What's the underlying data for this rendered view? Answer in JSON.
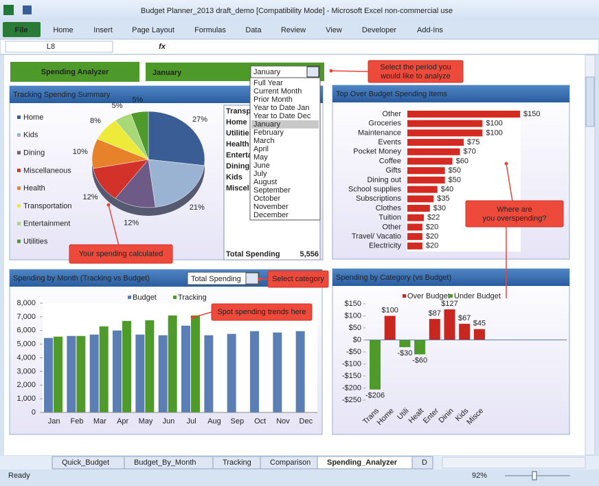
{
  "window": {
    "title": "Budget Planner_2013 draft_demo  [Compatibility Mode]  -  Microsoft Excel non-commercial use",
    "tabs": [
      "File",
      "Home",
      "Insert",
      "Page Layout",
      "Formulas",
      "Data",
      "Review",
      "View",
      "Developer",
      "Add-Ins"
    ],
    "name_box": "L8",
    "fx": "fx"
  },
  "header": {
    "title": "Spending Analyzer",
    "period": "January",
    "dropdown": {
      "selected": "January",
      "options": [
        "Full Year",
        "Current Month",
        "Prior Month",
        "Year to Date Jan",
        "Year to Date Dec",
        "January",
        "February",
        "March",
        "April",
        "May",
        "June",
        "July",
        "August",
        "September",
        "October",
        "November",
        "December"
      ]
    }
  },
  "callouts": [
    "Select the period you would like to analyze",
    "Your spending calculated",
    "Select category",
    "Spot spending trends here",
    "Where are you overspending?"
  ],
  "pie_chart": {
    "type": "pie",
    "title": "Tracking Spending Summary",
    "categories": [
      "Home",
      "Kids",
      "Dining",
      "Miscellaneous",
      "Health",
      "Transportation",
      "Entertainment",
      "Utilities"
    ],
    "values": [
      27,
      21,
      12,
      12,
      10,
      8,
      5,
      5
    ],
    "value_labels": [
      "27%",
      "21%",
      "12%",
      "12%",
      "10%",
      "8%",
      "5%",
      "5%"
    ],
    "colors": [
      "#3b5d96",
      "#9bb3d3",
      "#6e5a86",
      "#d3322a",
      "#e8822a",
      "#eeea3a",
      "#a8d878",
      "#4e9a2a"
    ]
  },
  "summary_table": {
    "rows": [
      "Transportation",
      "Home",
      "Utilities",
      "Health",
      "Entertainment",
      "Dining",
      "Kids",
      "Miscellaneous"
    ],
    "total_label": "Total Spending",
    "total": "5,556"
  },
  "over_budget_chart": {
    "type": "bar",
    "orientation": "horizontal",
    "title": "Top Over Budget Spending Items",
    "categories": [
      "Other",
      "Groceries",
      "Maintenance",
      "Events",
      "Pocket Money",
      "Coffee",
      "Gifts",
      "Dining out",
      "School supplies",
      "Subscriptions",
      "Clothes",
      "Tuition",
      "Other",
      "Travel/ Vacatio",
      "Electricity"
    ],
    "values": [
      150,
      100,
      100,
      75,
      70,
      60,
      50,
      50,
      40,
      35,
      30,
      22,
      20,
      20,
      20
    ],
    "value_labels": [
      "$150",
      "$100",
      "$100",
      "$75",
      "$70",
      "$60",
      "$50",
      "$50",
      "$40",
      "$35",
      "$30",
      "$22",
      "$20",
      "$20",
      "$20"
    ],
    "color": "#d42a22"
  },
  "monthly_chart": {
    "type": "bar",
    "title": "Spending by Month (Tracking vs Budget)",
    "category_selector": "Total Spending",
    "categories": [
      "Jan",
      "Feb",
      "Mar",
      "Apr",
      "May",
      "Jun",
      "Jul",
      "Aug",
      "Sep",
      "Oct",
      "Nov",
      "Dec"
    ],
    "series": [
      {
        "name": "Budget",
        "color": "#5b7fb5",
        "values": [
          5450,
          5600,
          5700,
          6000,
          5700,
          5650,
          6350,
          5650,
          5750,
          5950,
          5850,
          5950
        ]
      },
      {
        "name": "Tracking",
        "color": "#4e9a2a",
        "values": [
          5550,
          5600,
          6300,
          6700,
          6750,
          7100,
          7100,
          null,
          null,
          null,
          null,
          null
        ]
      }
    ],
    "ylim": [
      0,
      8000
    ],
    "yticks": [
      0,
      {
        "value": 1000,
        "label": "1,000"
      },
      {
        "value": 2000,
        "label": "2,000"
      },
      {
        "value": 3000,
        "label": "3,000"
      },
      {
        "value": 4000,
        "label": "4,000"
      },
      {
        "value": 5000,
        "label": "5,000"
      },
      {
        "value": 6000,
        "label": "6,000"
      },
      {
        "value": 7000,
        "label": "7,000"
      },
      {
        "value": 8000,
        "label": "8,000"
      }
    ],
    "grid": false
  },
  "category_chart": {
    "type": "bar",
    "title": "Spending by Category (vs Budget)",
    "categories": [
      "Trans",
      "Home",
      "Utili",
      "Healt",
      "Enter",
      "Dinin",
      "Kids",
      "Misce"
    ],
    "values": [
      -206,
      100,
      -30,
      -60,
      87,
      127,
      67,
      45
    ],
    "value_labels": [
      "-$206",
      "$100",
      "-$30",
      "-$60",
      "$87",
      "$127",
      "$67",
      "$45"
    ],
    "legend": [
      {
        "name": "Over Budget",
        "color": "#c8261f"
      },
      {
        "name": "Under Budget",
        "color": "#4e9a2a"
      }
    ],
    "ylim": [
      -250,
      150
    ],
    "yticks": [
      {
        "value": 150,
        "label": "$150"
      },
      {
        "value": 100,
        "label": "$100"
      },
      {
        "value": 50,
        "label": "$50"
      },
      {
        "value": 0,
        "label": "$0"
      },
      {
        "value": -50,
        "label": "-$50"
      },
      {
        "value": -100,
        "label": "-$100"
      },
      {
        "value": -150,
        "label": "-$150"
      },
      {
        "value": -200,
        "label": "-$200"
      },
      {
        "value": -250,
        "label": "-$250"
      }
    ],
    "grid": false
  },
  "sheet_tabs": [
    "Quick_Budget",
    "Budget_By_Month",
    "Tracking",
    "Comparison",
    "Spending_Analyzer",
    "D"
  ],
  "active_tab": 4,
  "status": {
    "mode": "Ready",
    "zoom": "92%"
  }
}
